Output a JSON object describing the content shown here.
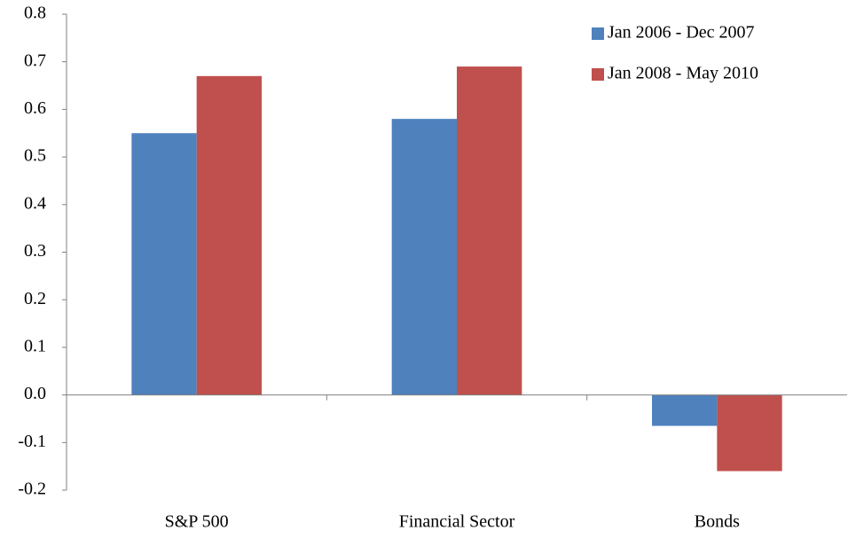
{
  "chart_data": {
    "type": "bar",
    "categories": [
      "S&P 500",
      "Financial Sector",
      "Bonds"
    ],
    "series": [
      {
        "name": "Jan 2006 - Dec 2007",
        "color": "#4f81bd",
        "values": [
          0.55,
          0.58,
          -0.065
        ]
      },
      {
        "name": "Jan 2008 - May 2010",
        "color": "#c0504d",
        "values": [
          0.67,
          0.69,
          -0.16
        ]
      }
    ],
    "ylim": [
      -0.2,
      0.8
    ],
    "yticks": [
      -0.2,
      -0.1,
      {
        "value": 0,
        "label": "0.0"
      },
      0.1,
      0.2,
      0.3,
      0.4,
      0.5,
      0.6,
      0.7,
      0.8
    ],
    "legend": "top-right"
  }
}
